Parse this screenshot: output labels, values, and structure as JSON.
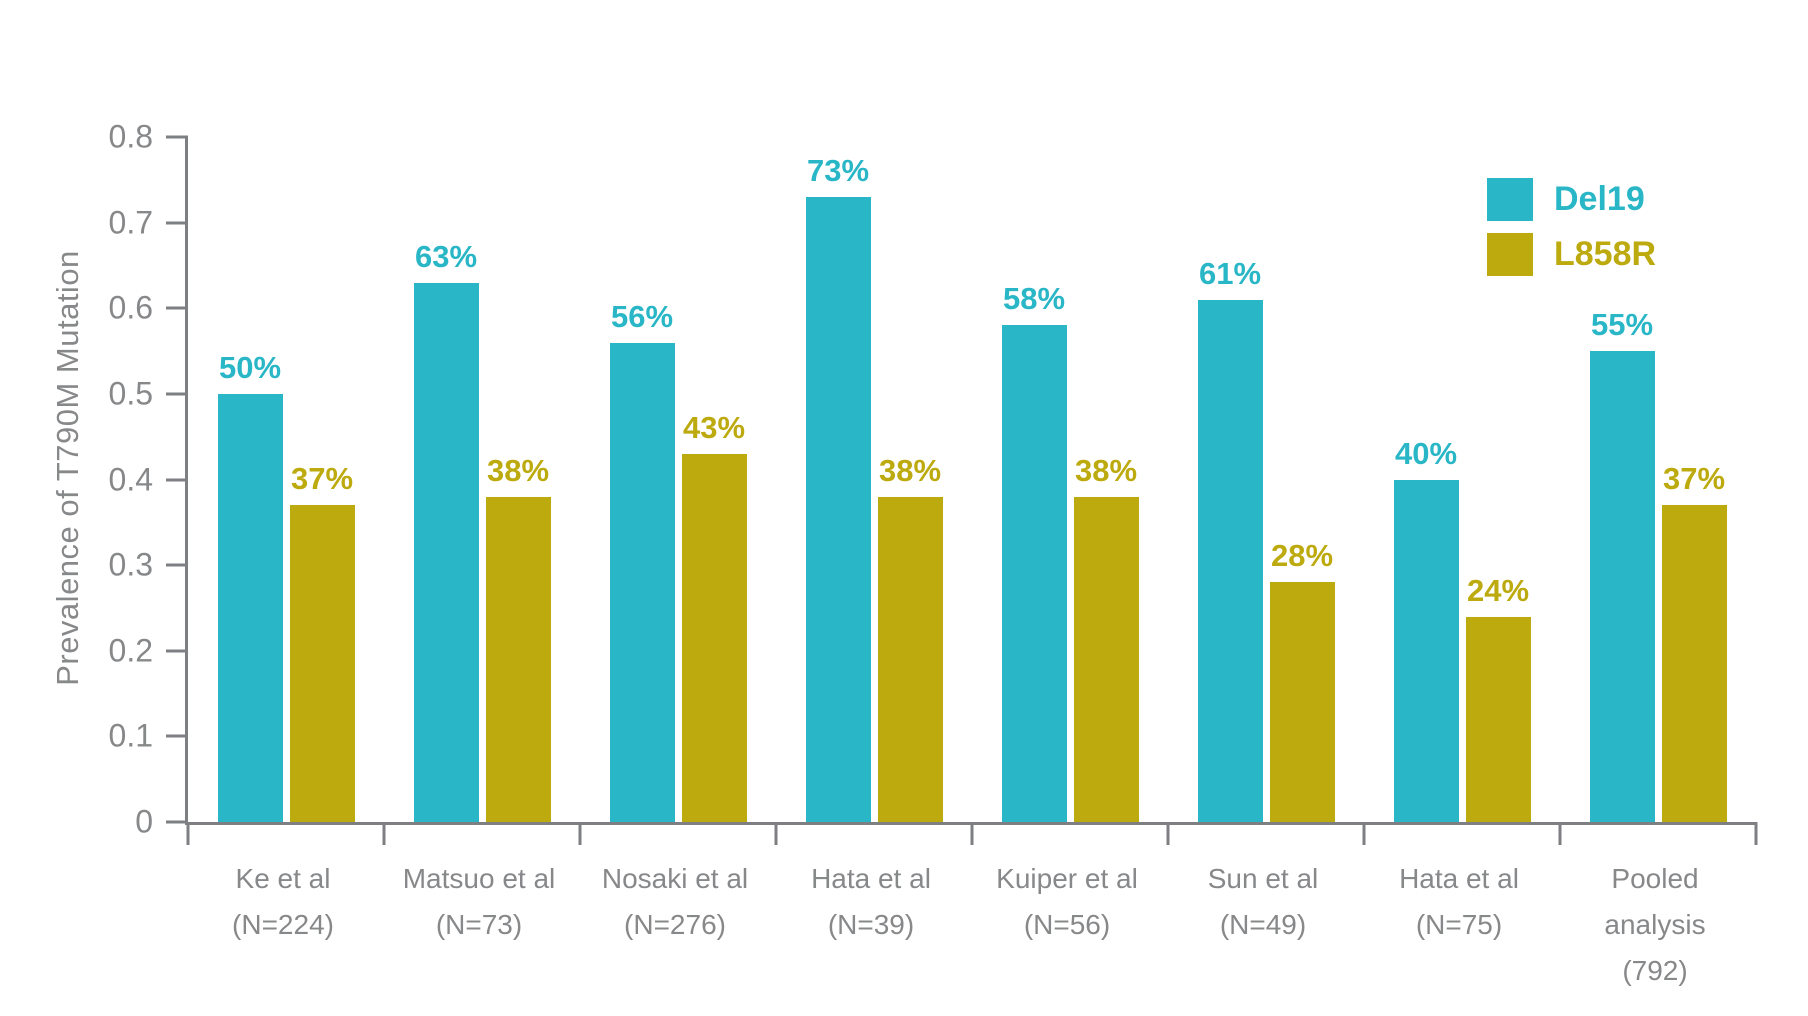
{
  "accent_colors": {
    "teal": "#29B6C6",
    "gold": "#BCAA0F",
    "axis_gray": "#87888A"
  },
  "chart_data": {
    "type": "bar",
    "title": "",
    "xlabel": "",
    "ylabel": "Prevalence of T790M Mutation",
    "ylim": [
      0,
      0.8
    ],
    "grid": false,
    "legend_position": "top-right",
    "yticks": [
      {
        "value": 0,
        "label": "0"
      },
      {
        "value": 0.1,
        "label": "0.1"
      },
      {
        "value": 0.2,
        "label": "0.2"
      },
      {
        "value": 0.3,
        "label": "0.3"
      },
      {
        "value": 0.4,
        "label": "0.4"
      },
      {
        "value": 0.5,
        "label": "0.5"
      },
      {
        "value": 0.6,
        "label": "0.6"
      },
      {
        "value": 0.7,
        "label": "0.7"
      },
      {
        "value": 0.8,
        "label": "0.8"
      }
    ],
    "categories": [
      {
        "study": "Ke et al",
        "n": "(N=224)"
      },
      {
        "study": "Matsuo et al",
        "n": "(N=73)"
      },
      {
        "study": "Nosaki et al",
        "n": "(N=276)"
      },
      {
        "study": "Hata et al",
        "n": "(N=39)"
      },
      {
        "study": "Kuiper et al",
        "n": "(N=56)"
      },
      {
        "study": "Sun et al",
        "n": "(N=49)"
      },
      {
        "study": "Hata et al",
        "n": "(N=75)"
      },
      {
        "study": "Pooled analysis",
        "n": "(792)"
      }
    ],
    "series": [
      {
        "name": "Del19",
        "color": "#29B6C6",
        "values": [
          0.5,
          0.63,
          0.56,
          0.73,
          0.58,
          0.61,
          0.4,
          0.55
        ],
        "labels": [
          "50%",
          "63%",
          "56%",
          "73%",
          "58%",
          "61%",
          "40%",
          "55%"
        ]
      },
      {
        "name": "L858R",
        "color": "#BCAA0F",
        "values": [
          0.37,
          0.38,
          0.43,
          0.38,
          0.38,
          0.28,
          0.24,
          0.37
        ],
        "labels": [
          "37%",
          "38%",
          "43%",
          "38%",
          "38%",
          "28%",
          "24%",
          "37%"
        ]
      }
    ]
  }
}
